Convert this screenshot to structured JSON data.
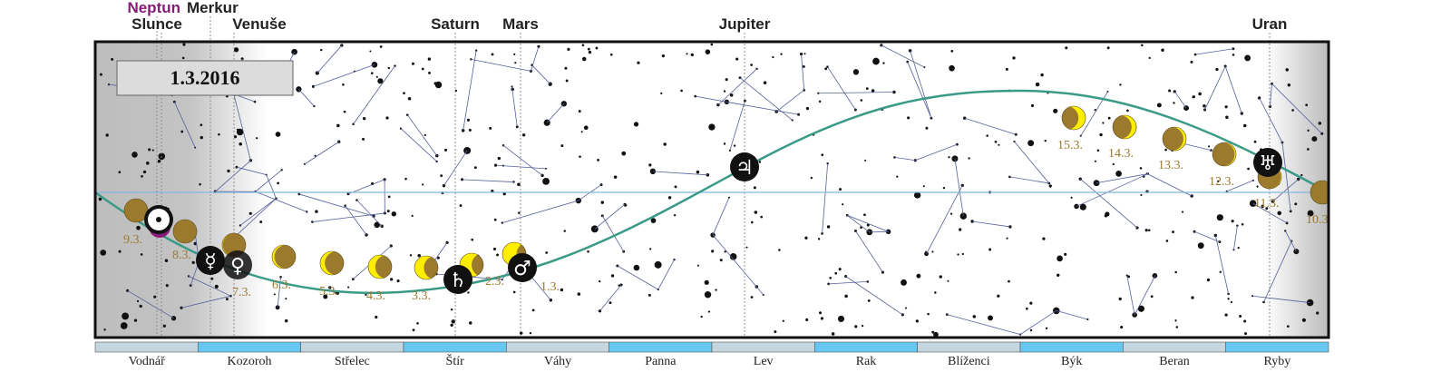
{
  "date_box": "1.3.2016",
  "colors": {
    "ecliptic": "#3a9a88",
    "equator": "#7fb8dd",
    "moon_dark": "#9b7a2e",
    "moon_lit": "#ffee00",
    "neptune": "#8a1a7a",
    "zodiac_a": "#c5d6de",
    "zodiac_b": "#66c8f0"
  },
  "planets": [
    {
      "name": "Neptun",
      "symbol": "",
      "color": "#8a1a7a"
    },
    {
      "name": "Slunce",
      "symbol": "☉"
    },
    {
      "name": "Merkur",
      "symbol": "☿"
    },
    {
      "name": "Venuše",
      "symbol": "♀"
    },
    {
      "name": "Saturn",
      "symbol": "♄"
    },
    {
      "name": "Mars",
      "symbol": "♂"
    },
    {
      "name": "Jupiter",
      "symbol": "♃"
    },
    {
      "name": "Uran",
      "symbol": "♅"
    }
  ],
  "moon": [
    {
      "date": "1.3.",
      "lit": "left",
      "illum": 0.6
    },
    {
      "date": "2.3.",
      "lit": "left",
      "illum": 0.5
    },
    {
      "date": "3.3.",
      "lit": "left",
      "illum": 0.4
    },
    {
      "date": "4.3.",
      "lit": "left",
      "illum": 0.3
    },
    {
      "date": "5.3.",
      "lit": "left",
      "illum": 0.2
    },
    {
      "date": "6.3.",
      "lit": "left",
      "illum": 0.1
    },
    {
      "date": "7.3.",
      "lit": "left",
      "illum": 0.03
    },
    {
      "date": "8.3.",
      "lit": "none",
      "illum": 0
    },
    {
      "date": "9.3.",
      "lit": "none",
      "illum": 0
    },
    {
      "date": "10.3.",
      "lit": "none",
      "illum": 0
    },
    {
      "date": "11.3.",
      "lit": "right",
      "illum": 0.03
    },
    {
      "date": "12.3.",
      "lit": "right",
      "illum": 0.06
    },
    {
      "date": "13.3.",
      "lit": "right",
      "illum": 0.12
    },
    {
      "date": "14.3.",
      "lit": "right",
      "illum": 0.2
    },
    {
      "date": "15.3.",
      "lit": "right",
      "illum": 0.3
    }
  ],
  "zodiac": [
    "Vodnář",
    "Kozoroh",
    "Střelec",
    "Štír",
    "Váhy",
    "Panna",
    "Lev",
    "Rak",
    "Blíženci",
    "Býk",
    "Beran",
    "Ryby"
  ]
}
